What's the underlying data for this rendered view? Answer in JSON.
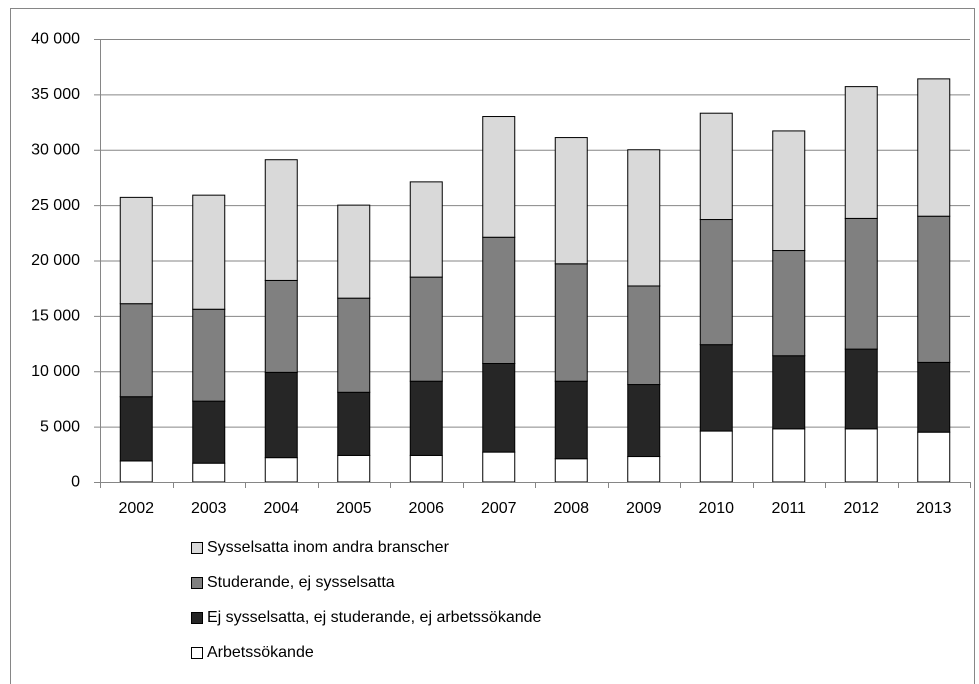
{
  "chart_data": {
    "type": "stacked-bar",
    "categories": [
      "2002",
      "2003",
      "2004",
      "2005",
      "2006",
      "2007",
      "2008",
      "2009",
      "2010",
      "2011",
      "2012",
      "2013"
    ],
    "series": [
      {
        "name": "Arbetssökande",
        "color": "#ffffff",
        "values": [
          1900,
          1700,
          2200,
          2400,
          2400,
          2700,
          2100,
          2300,
          4600,
          4800,
          4800,
          4500
        ]
      },
      {
        "name": "Ej sysselsatta, ej studerande, ej arbetssökande",
        "color": "#262626",
        "values": [
          5800,
          5600,
          7700,
          5700,
          6700,
          8000,
          7000,
          6500,
          7800,
          6600,
          7200,
          6300
        ]
      },
      {
        "name": "Studerande, ej sysselsatta",
        "color": "#808080",
        "values": [
          8400,
          8300,
          8300,
          8500,
          9400,
          11400,
          10600,
          8900,
          11300,
          9500,
          11800,
          13200
        ]
      },
      {
        "name": "Sysselsatta inom andra branscher",
        "color": "#d9d9d9",
        "values": [
          9600,
          10300,
          10900,
          8400,
          8600,
          10900,
          11400,
          12300,
          9600,
          10800,
          11900,
          12400
        ]
      }
    ],
    "ylim": [
      0,
      40000
    ],
    "yticks": [
      0,
      {
        "value": 5000,
        "label": "5 000"
      },
      {
        "value": 10000,
        "label": "10 000"
      },
      {
        "value": 15000,
        "label": "15 000"
      },
      {
        "value": 20000,
        "label": "20 000"
      },
      {
        "value": 25000,
        "label": "25 000"
      },
      {
        "value": 30000,
        "label": "30 000"
      },
      {
        "value": 35000,
        "label": "35 000"
      },
      {
        "value": 40000,
        "label": "40 000"
      }
    ],
    "grid": true,
    "legend": "bottom"
  }
}
